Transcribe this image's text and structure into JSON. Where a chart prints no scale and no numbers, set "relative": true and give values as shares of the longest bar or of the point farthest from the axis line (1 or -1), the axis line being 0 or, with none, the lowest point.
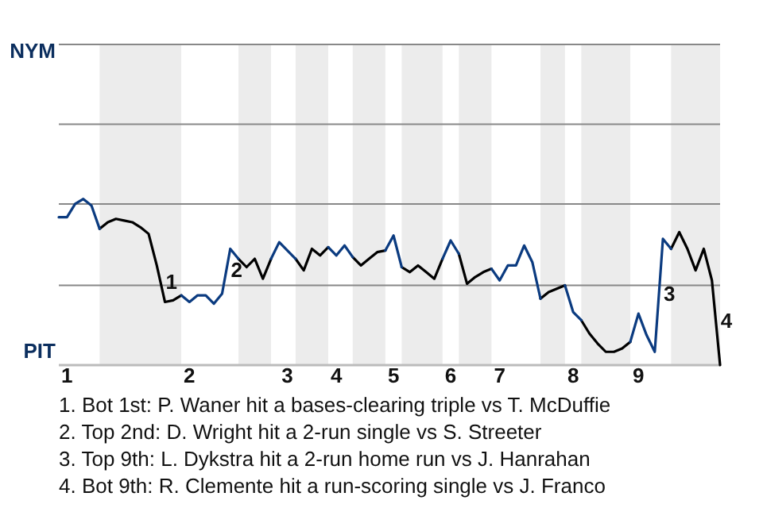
{
  "chart_data": {
    "type": "line",
    "relative": true,
    "categories": [
      null,
      "1",
      null,
      null,
      null,
      null,
      null,
      null,
      null,
      null,
      null,
      null,
      null,
      null,
      null,
      null,
      "2",
      null,
      null,
      null,
      null,
      null,
      null,
      null,
      null,
      null,
      null,
      null,
      "3",
      null,
      null,
      null,
      null,
      null,
      "4",
      null,
      null,
      null,
      null,
      null,
      null,
      "5",
      null,
      null,
      null,
      null,
      null,
      null,
      "6",
      null,
      null,
      null,
      null,
      null,
      "7",
      null,
      null,
      null,
      null,
      null,
      null,
      null,
      null,
      "8",
      null,
      null,
      null,
      null,
      null,
      null,
      null,
      "9",
      null,
      null,
      null,
      null,
      null,
      null,
      null,
      null,
      null,
      null
    ],
    "marker": "none",
    "line_style": "solid",
    "ref_lines": [
      {
        "axis": "y",
        "value": 0.48,
        "color": "#888888"
      },
      {
        "axis": "y",
        "value": 0.97,
        "color": "#888888"
      },
      {
        "axis": "y",
        "value": 1.45,
        "color": "#888888"
      },
      {
        "axis": "y",
        "value": 1.93,
        "color": "#888888"
      }
    ],
    "series": [
      {
        "color": "#0b3b80",
        "values": [
          0.89,
          0.89,
          0.97,
          1,
          0.96,
          0.82,
          null,
          null,
          null,
          null,
          null,
          null,
          null,
          null,
          null,
          0.42,
          0.38,
          0.42,
          0.42,
          0.37,
          0.43,
          0.7,
          0.64,
          null,
          null,
          null,
          0.64,
          0.74,
          0.69,
          0.64,
          null,
          null,
          null,
          0.71,
          0.66,
          0.72,
          0.65,
          null,
          null,
          null,
          0.69,
          0.78,
          0.59,
          null,
          null,
          null,
          null,
          0.64,
          0.75,
          0.67,
          null,
          null,
          null,
          0.58,
          0.51,
          0.6,
          0.6,
          0.72,
          0.62,
          0.4,
          null,
          null,
          0.48,
          0.32,
          0.27,
          null,
          null,
          null,
          null,
          null,
          0.14,
          0.31,
          0.18,
          0.08,
          0.76,
          0.7,
          null,
          null,
          null,
          null,
          null,
          null
        ]
      },
      {
        "color": "#000000",
        "values": [
          null,
          null,
          null,
          null,
          null,
          0.82,
          0.86,
          0.88,
          0.87,
          0.86,
          0.83,
          0.79,
          0.6,
          0.38,
          0.39,
          0.42,
          null,
          null,
          null,
          null,
          null,
          null,
          0.64,
          0.59,
          0.64,
          0.52,
          0.64,
          null,
          null,
          0.64,
          0.57,
          0.7,
          0.66,
          0.71,
          null,
          null,
          0.65,
          0.6,
          0.64,
          0.68,
          0.69,
          null,
          0.59,
          0.56,
          0.6,
          0.56,
          0.52,
          0.64,
          null,
          0.67,
          0.49,
          0.53,
          0.56,
          0.58,
          null,
          null,
          null,
          null,
          null,
          0.4,
          0.44,
          0.46,
          0.48,
          null,
          0.27,
          0.19,
          0.13,
          0.08,
          0.08,
          0.1,
          0.14,
          null,
          null,
          null,
          null,
          0.7,
          0.8,
          0.7,
          0.57,
          0.7,
          0.51,
          0
        ]
      }
    ],
    "annotations": [
      "NYM",
      "PIT",
      {
        "text": "1",
        "y": 0.38
      },
      {
        "text": "2",
        "y": 0.7
      },
      {
        "text": "3",
        "y": 0.76
      },
      {
        "text": "4",
        "y": 0
      },
      "1. Bot 1st: P. Waner hit a bases-clearing triple vs T. McDuffie",
      "2. Top 2nd: D. Wright hit a 2-run single vs S. Streeter",
      "3. Top 9th: L. Dykstra hit a 2-run home run vs J. Hanrahan",
      "4. Bot 9th: R. Clemente hit a run-scoring single vs J. Franco"
    ]
  }
}
